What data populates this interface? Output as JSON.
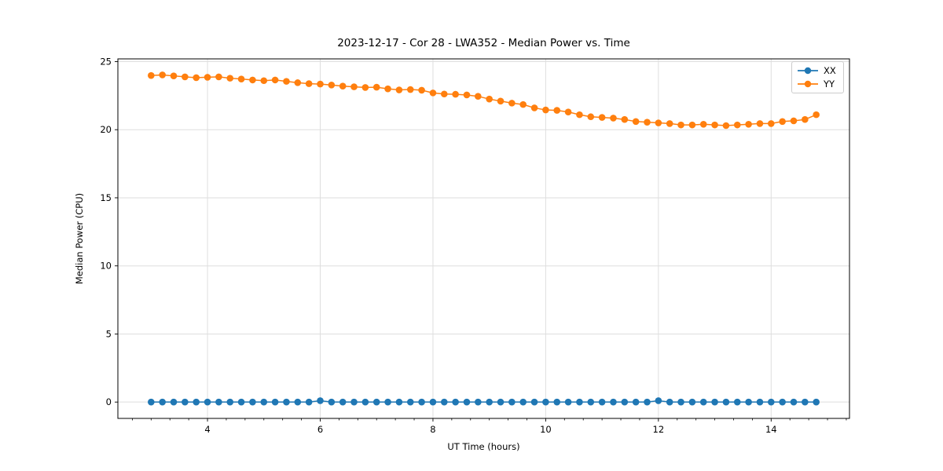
{
  "chart_data": {
    "type": "line",
    "title": "2023-12-17 - Cor 28 - LWA352 - Median Power vs. Time",
    "xlabel": "UT Time (hours)",
    "ylabel": "Median Power (CPU)",
    "xlim": [
      2.41,
      15.39
    ],
    "ylim": [
      -1.2,
      25.2
    ],
    "x_ticks": [
      4,
      6,
      8,
      10,
      12,
      14
    ],
    "y_ticks": [
      0,
      5,
      10,
      15,
      20,
      25
    ],
    "x_minor_step": 0.3333333,
    "grid": true,
    "grid_color": "#dedede",
    "spine_color": "#000000",
    "legend_position": "upper right",
    "marker": "circle",
    "x": [
      3.0,
      3.2,
      3.4,
      3.6,
      3.8,
      4.0,
      4.2,
      4.4,
      4.6,
      4.8,
      5.0,
      5.2,
      5.4,
      5.6,
      5.8,
      6.0,
      6.2,
      6.4,
      6.6,
      6.8,
      7.0,
      7.2,
      7.4,
      7.6,
      7.8,
      8.0,
      8.2,
      8.4,
      8.6,
      8.8,
      9.0,
      9.2,
      9.4,
      9.6,
      9.8,
      10.0,
      10.2,
      10.4,
      10.6,
      10.8,
      11.0,
      11.2,
      11.4,
      11.6,
      11.8,
      12.0,
      12.2,
      12.4,
      12.6,
      12.8,
      13.0,
      13.2,
      13.4,
      13.6,
      13.8,
      14.0,
      14.2,
      14.4,
      14.6,
      14.8
    ],
    "series": [
      {
        "name": "XX",
        "color": "#1f77b4",
        "values": [
          0,
          0,
          0,
          0,
          0,
          0,
          0,
          0,
          0,
          0,
          0,
          0,
          0,
          0,
          0,
          0.1,
          0,
          0,
          0,
          0,
          0,
          0,
          0,
          0,
          0,
          0,
          0,
          0,
          0,
          0,
          0,
          0,
          0,
          0,
          0,
          0,
          0,
          0,
          0,
          0,
          0,
          0,
          0,
          0,
          0,
          0.1,
          0,
          0,
          0,
          0,
          0,
          0,
          0,
          0,
          0,
          0,
          0,
          0,
          0,
          0
        ]
      },
      {
        "name": "YY",
        "color": "#ff7f0e",
        "values": [
          23.98,
          24.02,
          23.95,
          23.88,
          23.82,
          23.85,
          23.88,
          23.78,
          23.72,
          23.65,
          23.6,
          23.65,
          23.55,
          23.45,
          23.38,
          23.35,
          23.28,
          23.2,
          23.15,
          23.1,
          23.12,
          23.0,
          22.92,
          22.95,
          22.9,
          22.7,
          22.62,
          22.6,
          22.55,
          22.45,
          22.25,
          22.1,
          21.95,
          21.85,
          21.6,
          21.45,
          21.42,
          21.3,
          21.1,
          20.95,
          20.9,
          20.85,
          20.75,
          20.6,
          20.55,
          20.5,
          20.45,
          20.35,
          20.35,
          20.4,
          20.35,
          20.3,
          20.35,
          20.4,
          20.45,
          20.45,
          20.6,
          20.65,
          20.75,
          21.1
        ]
      }
    ]
  }
}
